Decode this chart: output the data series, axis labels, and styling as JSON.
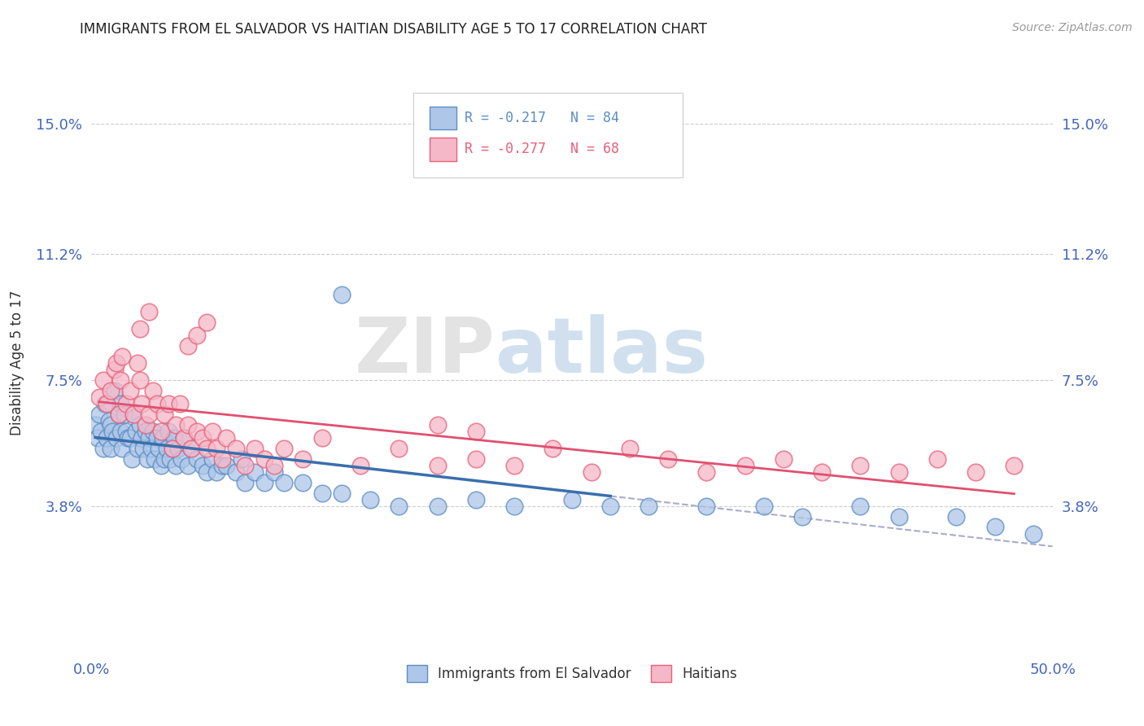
{
  "title": "IMMIGRANTS FROM EL SALVADOR VS HAITIAN DISABILITY AGE 5 TO 17 CORRELATION CHART",
  "source": "Source: ZipAtlas.com",
  "ylabel": "Disability Age 5 to 17",
  "legend_label_1": "Immigrants from El Salvador",
  "legend_label_2": "Haitians",
  "r1": -0.217,
  "n1": 84,
  "r2": -0.277,
  "n2": 68,
  "color1": "#aec6e8",
  "color2": "#f5b8c8",
  "edge_color1": "#5b8ec4",
  "edge_color2": "#e8607a",
  "line_color1": "#3a6fad",
  "line_color2": "#e05070",
  "dash_color": "#aaaacc",
  "xlim": [
    0.0,
    0.5
  ],
  "ylim": [
    -0.005,
    0.165
  ],
  "yticks": [
    0.038,
    0.075,
    0.112,
    0.15
  ],
  "ytick_labels": [
    "3.8%",
    "7.5%",
    "11.2%",
    "15.0%"
  ],
  "xticks": [
    0.0,
    0.5
  ],
  "xtick_labels": [
    "0.0%",
    "50.0%"
  ],
  "watermark_zip": "ZIP",
  "watermark_atlas": "atlas",
  "background_color": "#ffffff",
  "grid_color": "#cccccc",
  "title_color": "#222222",
  "tick_color": "#4466bb",
  "scatter1_x": [
    0.002,
    0.003,
    0.004,
    0.005,
    0.006,
    0.007,
    0.008,
    0.009,
    0.01,
    0.01,
    0.011,
    0.012,
    0.013,
    0.014,
    0.015,
    0.015,
    0.016,
    0.017,
    0.018,
    0.019,
    0.02,
    0.021,
    0.022,
    0.023,
    0.024,
    0.025,
    0.026,
    0.027,
    0.028,
    0.029,
    0.03,
    0.031,
    0.032,
    0.033,
    0.034,
    0.035,
    0.036,
    0.037,
    0.038,
    0.039,
    0.04,
    0.041,
    0.042,
    0.043,
    0.044,
    0.045,
    0.047,
    0.048,
    0.05,
    0.052,
    0.055,
    0.058,
    0.06,
    0.063,
    0.065,
    0.068,
    0.07,
    0.075,
    0.078,
    0.08,
    0.085,
    0.09,
    0.095,
    0.1,
    0.11,
    0.12,
    0.13,
    0.145,
    0.16,
    0.18,
    0.2,
    0.22,
    0.25,
    0.27,
    0.29,
    0.32,
    0.35,
    0.37,
    0.4,
    0.42,
    0.45,
    0.47,
    0.49,
    0.13
  ],
  "scatter1_y": [
    0.062,
    0.058,
    0.065,
    0.06,
    0.055,
    0.068,
    0.058,
    0.063,
    0.062,
    0.055,
    0.06,
    0.072,
    0.058,
    0.065,
    0.068,
    0.06,
    0.055,
    0.065,
    0.06,
    0.058,
    0.058,
    0.052,
    0.065,
    0.06,
    0.055,
    0.062,
    0.058,
    0.055,
    0.06,
    0.052,
    0.058,
    0.055,
    0.06,
    0.052,
    0.058,
    0.055,
    0.05,
    0.058,
    0.052,
    0.055,
    0.06,
    0.052,
    0.055,
    0.058,
    0.05,
    0.055,
    0.052,
    0.058,
    0.05,
    0.055,
    0.052,
    0.05,
    0.048,
    0.052,
    0.048,
    0.05,
    0.05,
    0.048,
    0.052,
    0.045,
    0.048,
    0.045,
    0.048,
    0.045,
    0.045,
    0.042,
    0.042,
    0.04,
    0.038,
    0.038,
    0.04,
    0.038,
    0.04,
    0.038,
    0.038,
    0.038,
    0.038,
    0.035,
    0.038,
    0.035,
    0.035,
    0.032,
    0.03,
    0.1
  ],
  "scatter2_x": [
    0.004,
    0.006,
    0.008,
    0.01,
    0.012,
    0.013,
    0.014,
    0.015,
    0.016,
    0.018,
    0.02,
    0.022,
    0.024,
    0.025,
    0.026,
    0.028,
    0.03,
    0.032,
    0.034,
    0.036,
    0.038,
    0.04,
    0.042,
    0.044,
    0.046,
    0.048,
    0.05,
    0.052,
    0.055,
    0.058,
    0.06,
    0.063,
    0.065,
    0.068,
    0.07,
    0.075,
    0.08,
    0.085,
    0.09,
    0.095,
    0.1,
    0.11,
    0.12,
    0.14,
    0.16,
    0.18,
    0.2,
    0.22,
    0.24,
    0.26,
    0.28,
    0.3,
    0.32,
    0.34,
    0.36,
    0.38,
    0.4,
    0.42,
    0.44,
    0.46,
    0.48,
    0.025,
    0.03,
    0.05,
    0.055,
    0.06,
    0.18,
    0.2
  ],
  "scatter2_y": [
    0.07,
    0.075,
    0.068,
    0.072,
    0.078,
    0.08,
    0.065,
    0.075,
    0.082,
    0.068,
    0.072,
    0.065,
    0.08,
    0.075,
    0.068,
    0.062,
    0.065,
    0.072,
    0.068,
    0.06,
    0.065,
    0.068,
    0.055,
    0.062,
    0.068,
    0.058,
    0.062,
    0.055,
    0.06,
    0.058,
    0.055,
    0.06,
    0.055,
    0.052,
    0.058,
    0.055,
    0.05,
    0.055,
    0.052,
    0.05,
    0.055,
    0.052,
    0.058,
    0.05,
    0.055,
    0.05,
    0.052,
    0.05,
    0.055,
    0.048,
    0.055,
    0.052,
    0.048,
    0.05,
    0.052,
    0.048,
    0.05,
    0.048,
    0.052,
    0.048,
    0.05,
    0.09,
    0.095,
    0.085,
    0.088,
    0.092,
    0.062,
    0.06
  ]
}
